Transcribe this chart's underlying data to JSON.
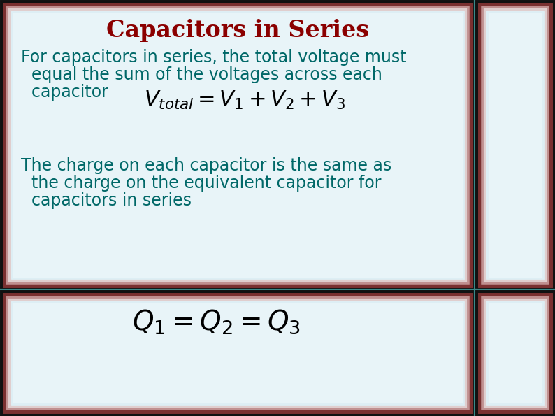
{
  "title": "Capacitors in Series",
  "title_color": "#8B0000",
  "title_fontsize": 24,
  "body_text_color": "#006868",
  "body_fontsize": 17,
  "bg_color": "#ddeef4",
  "bg_color_light": "#e8f4f8",
  "border_outer_dark": "#111111",
  "border_teal": "#4a9090",
  "border_rose": "#c09090",
  "border_pink_light": "#e0c8c8",
  "paragraph1_line1": "For capacitors in series, the total voltage must",
  "paragraph1_line2": "  equal the sum of the voltages across each",
  "paragraph1_line3": "  capacitor",
  "equation1": "$V_{total} = V_1 + V_2 + V_3$",
  "paragraph2_line1": "The charge on each capacitor is the same as",
  "paragraph2_line2": "  the charge on the equivalent capacitor for",
  "paragraph2_line3": "  capacitors in series",
  "equation2": "$Q_1 = Q_2 = Q_3$",
  "eq1_fontsize": 22,
  "eq2_fontsize": 28,
  "fig_width": 7.94,
  "fig_height": 5.95,
  "dpi": 100
}
